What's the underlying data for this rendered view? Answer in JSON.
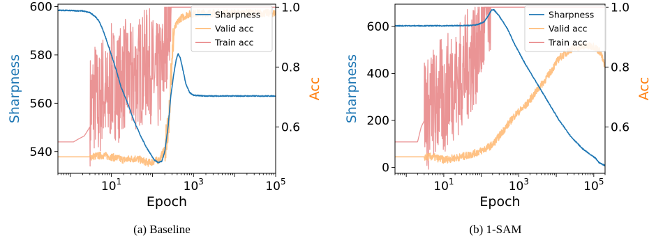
{
  "chart_data": [
    {
      "type": "line",
      "caption": "(a) Baseline",
      "xlabel": "Epoch",
      "ylabel_left": "Sharpness",
      "ylabel_right": "Acc",
      "x_scale": "log",
      "xlim": [
        0.5,
        100000
      ],
      "ylim_left": [
        531,
        601
      ],
      "ylim_right": [
        0.445,
        1.01
      ],
      "x_ticks": [
        10,
        1000,
        100000
      ],
      "x_tick_labels": [
        {
          "base": "10",
          "exp": "1"
        },
        {
          "base": "10",
          "exp": "3"
        },
        {
          "base": "10",
          "exp": "5"
        }
      ],
      "y_left_ticks": [
        540,
        560,
        580,
        600
      ],
      "y_right_ticks": [
        0.6,
        0.8,
        1.0
      ],
      "y_right_tick_labels": [
        "0.6",
        "0.8",
        "1.0"
      ],
      "legend": {
        "position": "top-right"
      },
      "series": [
        {
          "name": "Sharpness",
          "axis": "left",
          "color": "#1f77b4",
          "points": [
            [
              0.5,
              598.5
            ],
            [
              2,
              598.2
            ],
            [
              3,
              597.5
            ],
            [
              4,
              596
            ],
            [
              5,
              594
            ],
            [
              6,
              591
            ],
            [
              7,
              588
            ],
            [
              8,
              585
            ],
            [
              10,
              580
            ],
            [
              13,
              574
            ],
            [
              17,
              567
            ],
            [
              25,
              560
            ],
            [
              35,
              553
            ],
            [
              50,
              547
            ],
            [
              70,
              542
            ],
            [
              90,
              539
            ],
            [
              110,
              536.5
            ],
            [
              140,
              535.5
            ],
            [
              170,
              536
            ],
            [
              200,
              540
            ],
            [
              240,
              550
            ],
            [
              280,
              563
            ],
            [
              330,
              572
            ],
            [
              380,
              578
            ],
            [
              420,
              580.5
            ],
            [
              470,
              579
            ],
            [
              550,
              574
            ],
            [
              650,
              568
            ],
            [
              800,
              564.5
            ],
            [
              1000,
              563.3
            ],
            [
              2000,
              563
            ],
            [
              10000,
              563
            ],
            [
              100000,
              563
            ]
          ]
        },
        {
          "name": "Valid acc",
          "axis": "right",
          "color": "#ffbb78",
          "points": [
            [
              0.5,
              0.5
            ],
            [
              3,
              0.5
            ],
            [
              6,
              0.505
            ],
            [
              10,
              0.5
            ],
            [
              20,
              0.49
            ],
            [
              40,
              0.495
            ],
            [
              80,
              0.48
            ],
            [
              150,
              0.49
            ],
            [
              220,
              0.54
            ],
            [
              260,
              0.66
            ],
            [
              300,
              0.85
            ],
            [
              350,
              0.93
            ],
            [
              450,
              0.96
            ],
            [
              700,
              0.975
            ],
            [
              1200,
              0.98
            ],
            [
              5000,
              0.98
            ],
            [
              20000,
              0.98
            ],
            [
              100000,
              0.98
            ]
          ]
        },
        {
          "name": "Train acc",
          "axis": "right",
          "color": "#e8888a",
          "noise_from": 3,
          "noise_to": 300,
          "points": [
            [
              0.5,
              0.55
            ],
            [
              1.2,
              0.55
            ],
            [
              1.6,
              0.56
            ],
            [
              2.2,
              0.57
            ],
            [
              3,
              0.6
            ],
            [
              4,
              0.65
            ],
            [
              5,
              0.6
            ],
            [
              6,
              0.68
            ],
            [
              8,
              0.62
            ],
            [
              10,
              0.7
            ],
            [
              15,
              0.68
            ],
            [
              20,
              0.72
            ],
            [
              30,
              0.7
            ],
            [
              50,
              0.73
            ],
            [
              80,
              0.76
            ],
            [
              120,
              0.7
            ],
            [
              170,
              0.72
            ],
            [
              250,
              0.93
            ],
            [
              300,
              1.0
            ],
            [
              100000,
              1.0
            ]
          ]
        }
      ]
    },
    {
      "type": "line",
      "caption": "(b) 1-SAM",
      "xlabel": "Epoch",
      "ylabel_left": "Sharpness",
      "ylabel_right": "Acc",
      "x_scale": "log",
      "xlim": [
        0.5,
        200000
      ],
      "ylim_left": [
        -25,
        695
      ],
      "ylim_right": [
        0.445,
        1.01
      ],
      "x_ticks": [
        10,
        1000,
        100000
      ],
      "x_tick_labels": [
        {
          "base": "10",
          "exp": "1"
        },
        {
          "base": "10",
          "exp": "3"
        },
        {
          "base": "10",
          "exp": "5"
        }
      ],
      "y_left_ticks": [
        0,
        200,
        400,
        600
      ],
      "y_right_ticks": [
        0.6,
        0.8,
        1.0
      ],
      "y_right_tick_labels": [
        "0.6",
        "0.8",
        "1.0"
      ],
      "legend": {
        "position": "top-right"
      },
      "series": [
        {
          "name": "Sharpness",
          "axis": "left",
          "color": "#1f77b4",
          "points": [
            [
              0.5,
              603
            ],
            [
              10,
              603
            ],
            [
              50,
              604
            ],
            [
              80,
              608
            ],
            [
              120,
              620
            ],
            [
              160,
              650
            ],
            [
              190,
              672
            ],
            [
              220,
              670
            ],
            [
              300,
              645
            ],
            [
              500,
              590
            ],
            [
              800,
              520
            ],
            [
              1500,
              440
            ],
            [
              3000,
              360
            ],
            [
              6000,
              280
            ],
            [
              12000,
              200
            ],
            [
              25000,
              130
            ],
            [
              50000,
              80
            ],
            [
              80000,
              55
            ],
            [
              110000,
              40
            ],
            [
              140000,
              20
            ],
            [
              200000,
              8
            ]
          ]
        },
        {
          "name": "Valid acc",
          "axis": "right",
          "color": "#ffbb78",
          "points": [
            [
              0.5,
              0.5
            ],
            [
              5,
              0.5
            ],
            [
              10,
              0.49
            ],
            [
              30,
              0.5
            ],
            [
              60,
              0.51
            ],
            [
              100,
              0.52
            ],
            [
              200,
              0.54
            ],
            [
              400,
              0.59
            ],
            [
              800,
              0.64
            ],
            [
              1500,
              0.67
            ],
            [
              3000,
              0.72
            ],
            [
              6000,
              0.77
            ],
            [
              12000,
              0.83
            ],
            [
              25000,
              0.86
            ],
            [
              50000,
              0.87
            ],
            [
              100000,
              0.87
            ],
            [
              150000,
              0.85
            ],
            [
              200000,
              0.8
            ]
          ]
        },
        {
          "name": "Train acc",
          "axis": "right",
          "color": "#e8888a",
          "noise_from": 3,
          "noise_to": 200,
          "points": [
            [
              0.5,
              0.55
            ],
            [
              2,
              0.55
            ],
            [
              2.5,
              0.6
            ],
            [
              3,
              0.62
            ],
            [
              4,
              0.58
            ],
            [
              5,
              0.64
            ],
            [
              6,
              0.6
            ],
            [
              8,
              0.66
            ],
            [
              10,
              0.62
            ],
            [
              15,
              0.7
            ],
            [
              20,
              0.68
            ],
            [
              30,
              0.72
            ],
            [
              50,
              0.76
            ],
            [
              80,
              0.82
            ],
            [
              120,
              0.88
            ],
            [
              150,
              0.95
            ],
            [
              200,
              1.0
            ],
            [
              200000,
              1.0
            ]
          ]
        }
      ]
    }
  ]
}
